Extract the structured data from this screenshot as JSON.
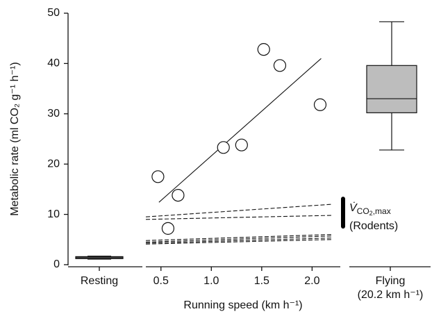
{
  "chart_data": {
    "type": "combo",
    "y_label": "Metabolic rate (ml CO₂ g⁻¹ h⁻¹)",
    "ylim": [
      0,
      50
    ],
    "yticks": [
      0,
      10,
      20,
      30,
      40,
      50
    ],
    "resting": {
      "label": "Resting",
      "color": "#bdbdbd",
      "box": {
        "whislo": 1.1,
        "q1": 1.2,
        "med": 1.4,
        "q3": 1.6,
        "whishi": 1.7
      }
    },
    "running": {
      "x_label": "Running speed (km h⁻¹)",
      "xlim": [
        0.35,
        2.28
      ],
      "xticks": [
        {
          "value": 0.5,
          "label": "0.5"
        },
        {
          "value": 1.0,
          "label": "1.0"
        },
        {
          "value": 1.5,
          "label": "1.5"
        },
        {
          "value": 2.0,
          "label": "2.0"
        }
      ],
      "points": {
        "x": [
          0.47,
          0.57,
          0.67,
          1.12,
          1.3,
          1.52,
          1.68,
          2.08
        ],
        "y": [
          17.5,
          7.2,
          13.8,
          23.3,
          23.8,
          42.8,
          39.6,
          31.8
        ]
      },
      "fit": {
        "x": [
          0.48,
          2.09
        ],
        "y": [
          12.4,
          41.0
        ]
      },
      "dashed": [
        {
          "x": [
            0.35,
            2.19
          ],
          "y": [
            9.5,
            12.0
          ]
        },
        {
          "x": [
            0.35,
            2.19
          ],
          "y": [
            9.0,
            9.8
          ]
        },
        {
          "x": [
            0.35,
            2.19
          ],
          "y": [
            4.8,
            6.0
          ]
        },
        {
          "x": [
            0.35,
            2.19
          ],
          "y": [
            4.5,
            5.7
          ]
        },
        {
          "x": [
            0.35,
            2.19
          ],
          "y": [
            4.3,
            5.3
          ]
        },
        {
          "x": [
            0.35,
            2.19
          ],
          "y": [
            4.1,
            5.0
          ]
        }
      ],
      "vmax": {
        "range": [
          7.6,
          13.1
        ],
        "symbol": "V̇",
        "sub_main": "CO",
        "sub_digit": "2",
        "sub_tail": ",max",
        "group": "(Rodents)"
      }
    },
    "flying": {
      "label": "Flying",
      "sublabel": "(20.2 km h⁻¹)",
      "color": "#bdbdbd",
      "box": {
        "whislo": 22.8,
        "q1": 30.2,
        "med": 33.0,
        "q3": 39.6,
        "whishi": 48.3
      }
    }
  }
}
